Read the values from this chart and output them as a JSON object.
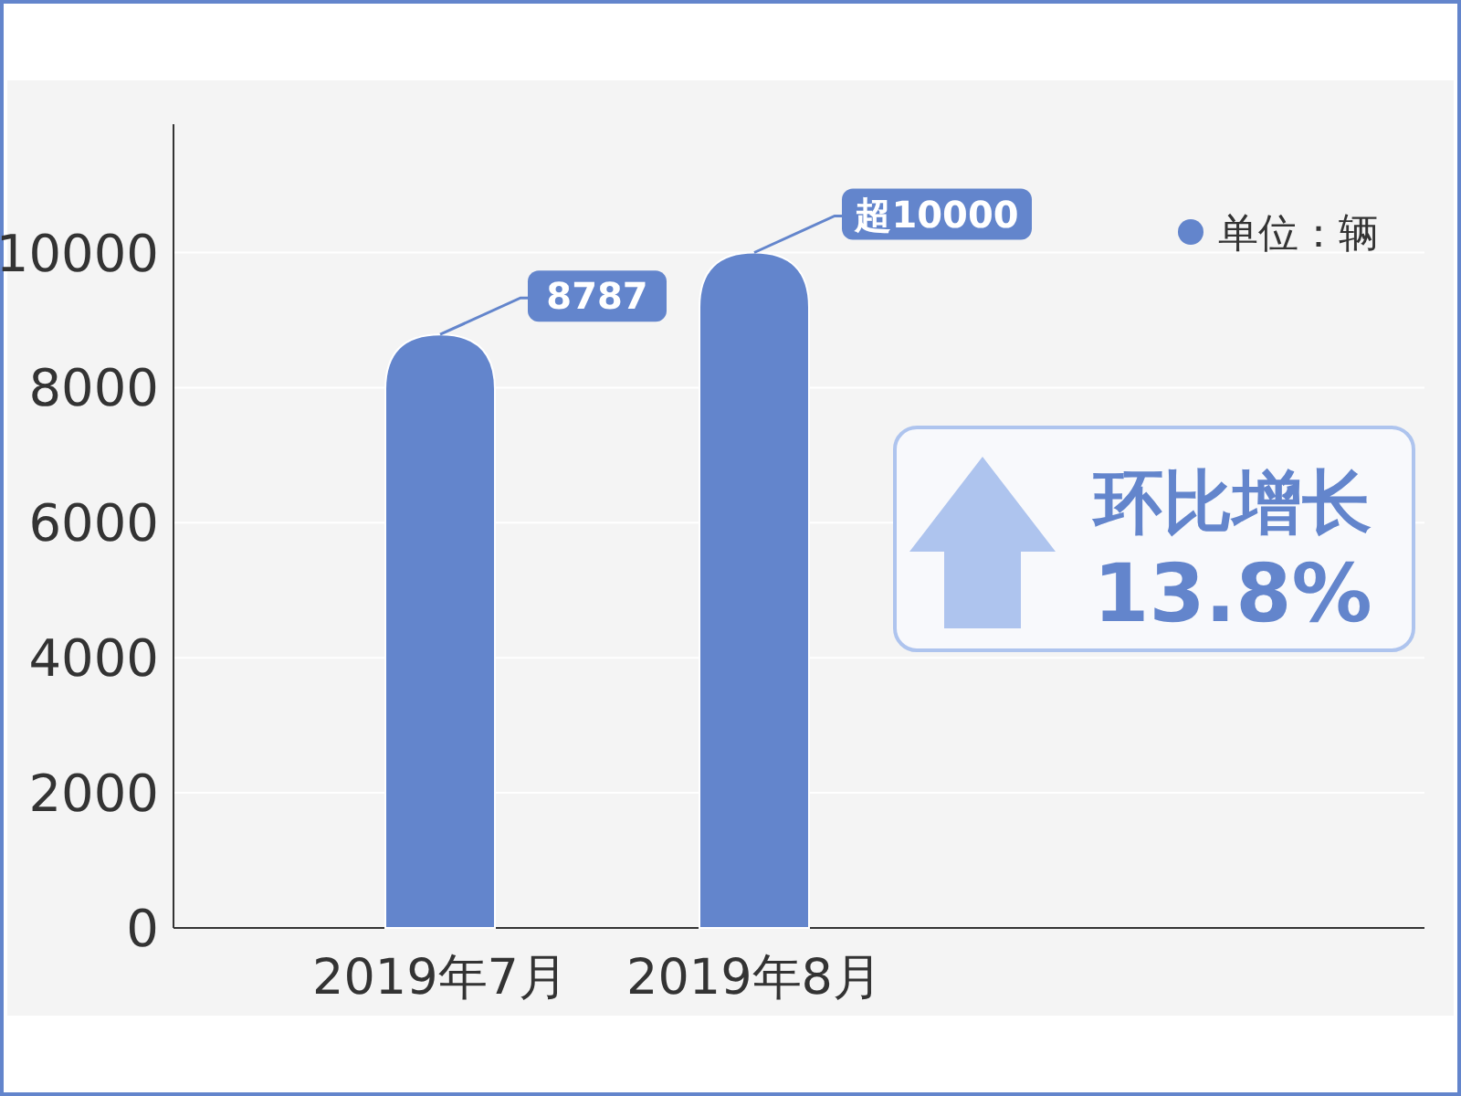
{
  "chart_data": {
    "type": "bar",
    "categories": [
      "2019年7月",
      "2019年8月"
    ],
    "series": [
      {
        "name": "单位：辆",
        "color": "#6385cc",
        "values": [
          8787,
          10000
        ],
        "value_labels": [
          "8787",
          "超10000"
        ]
      }
    ],
    "ylim": [
      0,
      11900
    ],
    "yticks": [
      0,
      2000,
      4000,
      6000,
      8000,
      10000
    ],
    "grid": "y",
    "legend": "top right",
    "annotations": [
      "环比增长",
      "13.8%"
    ]
  }
}
